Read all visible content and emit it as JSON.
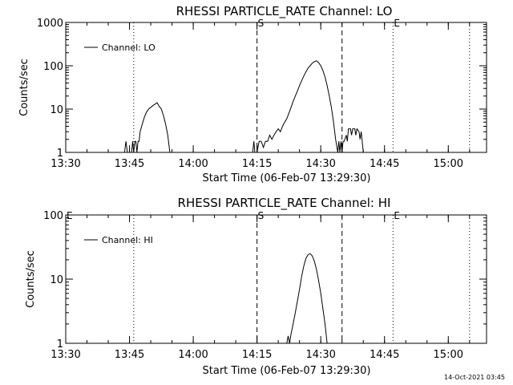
{
  "chart_data": [
    {
      "type": "line",
      "title": "RHESSI PARTICLE_RATE Channel: LO",
      "xlabel": "Start Time (06-Feb-07 13:29:30)",
      "ylabel": "Counts/sec",
      "yscale": "log",
      "ylim": [
        1,
        1000
      ],
      "yticks": [
        "1",
        "10",
        "100",
        "1000"
      ],
      "xticks": [
        "13:30",
        "13:45",
        "14:00",
        "14:15",
        "14:30",
        "14:45",
        "15:00"
      ],
      "legend": "top-left",
      "vlines": [
        {
          "time": "13:46",
          "style": "dotted"
        },
        {
          "time": "14:15",
          "style": "dashed",
          "label": "S"
        },
        {
          "time": "14:35",
          "style": "dashed"
        },
        {
          "time": "14:47",
          "style": "dotted",
          "label": "E"
        },
        {
          "time": "15:05",
          "style": "dotted"
        }
      ],
      "series": [
        {
          "name": "Channel: LO",
          "points": [
            [
              "13:43:50",
              1
            ],
            [
              "13:44:10",
              1.8
            ],
            [
              "13:44:30",
              1
            ],
            [
              "13:45:30",
              1
            ],
            [
              "13:45:45",
              1.8
            ],
            [
              "13:46:00",
              1
            ],
            [
              "13:46:15",
              1.8
            ],
            [
              "13:46:30",
              1.8
            ],
            [
              "13:46:45",
              1
            ],
            [
              "13:47:00",
              1.8
            ],
            [
              "13:47:15",
              1.8
            ],
            [
              "13:47:30",
              3
            ],
            [
              "13:48:00",
              4.5
            ],
            [
              "13:48:30",
              6.5
            ],
            [
              "13:49:00",
              8.5
            ],
            [
              "13:49:30",
              10
            ],
            [
              "13:50:00",
              11
            ],
            [
              "13:50:30",
              12
            ],
            [
              "13:51:00",
              13
            ],
            [
              "13:51:30",
              14
            ],
            [
              "13:52:00",
              11.5
            ],
            [
              "13:52:30",
              10
            ],
            [
              "13:53:00",
              7
            ],
            [
              "13:53:30",
              4.5
            ],
            [
              "13:54:00",
              2.5
            ],
            [
              "13:54:30",
              1
            ],
            [
              "14:14:00",
              1
            ],
            [
              "14:14:15",
              1.8
            ],
            [
              "14:14:30",
              1
            ],
            [
              "14:15:00",
              1
            ],
            [
              "14:15:30",
              1.8
            ],
            [
              "14:16:00",
              1.8
            ],
            [
              "14:16:30",
              1.3
            ],
            [
              "14:17:00",
              1.8
            ],
            [
              "14:17:30",
              1.8
            ],
            [
              "14:18:00",
              2.5
            ],
            [
              "14:18:30",
              2
            ],
            [
              "14:19:00",
              2.5
            ],
            [
              "14:19:30",
              3
            ],
            [
              "14:20:00",
              3.5
            ],
            [
              "14:20:30",
              3
            ],
            [
              "14:21:00",
              4
            ],
            [
              "14:21:30",
              5
            ],
            [
              "14:22:00",
              6
            ],
            [
              "14:22:30",
              8
            ],
            [
              "14:23:00",
              11
            ],
            [
              "14:23:30",
              15
            ],
            [
              "14:24:00",
              20
            ],
            [
              "14:24:30",
              26
            ],
            [
              "14:25:00",
              35
            ],
            [
              "14:25:30",
              45
            ],
            [
              "14:26:00",
              58
            ],
            [
              "14:26:30",
              72
            ],
            [
              "14:27:00",
              88
            ],
            [
              "14:27:30",
              100
            ],
            [
              "14:28:00",
              115
            ],
            [
              "14:28:30",
              125
            ],
            [
              "14:29:00",
              130
            ],
            [
              "14:29:30",
              118
            ],
            [
              "14:30:00",
              100
            ],
            [
              "14:30:30",
              78
            ],
            [
              "14:31:00",
              55
            ],
            [
              "14:31:30",
              35
            ],
            [
              "14:32:00",
              20
            ],
            [
              "14:32:30",
              11
            ],
            [
              "14:33:00",
              5
            ],
            [
              "14:33:30",
              2
            ],
            [
              "14:34:00",
              1
            ],
            [
              "14:34:15",
              1.8
            ],
            [
              "14:34:30",
              1
            ],
            [
              "14:34:45",
              1.8
            ],
            [
              "14:35:00",
              1
            ],
            [
              "14:35:15",
              1.8
            ],
            [
              "14:35:30",
              1.8
            ],
            [
              "14:36:00",
              2.5
            ],
            [
              "14:36:15",
              1.8
            ],
            [
              "14:36:30",
              3.5
            ],
            [
              "14:37:00",
              3.5
            ],
            [
              "14:37:15",
              2.5
            ],
            [
              "14:37:30",
              3.5
            ],
            [
              "14:38:00",
              3.5
            ],
            [
              "14:38:15",
              2.5
            ],
            [
              "14:38:30",
              3.5
            ],
            [
              "14:39:00",
              3
            ],
            [
              "14:39:15",
              2
            ],
            [
              "14:39:30",
              3
            ],
            [
              "14:39:45",
              1.8
            ],
            [
              "14:40:00",
              1
            ]
          ]
        }
      ]
    },
    {
      "type": "line",
      "title": "RHESSI PARTICLE_RATE Channel: HI",
      "xlabel": "Start Time (06-Feb-07 13:29:30)",
      "ylabel": "Counts/sec",
      "yscale": "log",
      "ylim": [
        1,
        100
      ],
      "yticks": [
        "1",
        "10",
        "100"
      ],
      "xticks": [
        "13:30",
        "13:45",
        "14:00",
        "14:15",
        "14:30",
        "14:45",
        "15:00"
      ],
      "legend": "top-left",
      "vlines": [
        {
          "time": "13:30",
          "style": "none",
          "label": "E"
        },
        {
          "time": "13:46",
          "style": "dotted"
        },
        {
          "time": "14:15",
          "style": "dashed",
          "label": "S"
        },
        {
          "time": "14:35",
          "style": "dashed"
        },
        {
          "time": "14:47",
          "style": "dotted",
          "label": "E"
        },
        {
          "time": "15:05",
          "style": "dotted"
        }
      ],
      "series": [
        {
          "name": "Channel: HI",
          "points": [
            [
              "14:22:00",
              1
            ],
            [
              "14:22:20",
              1.3
            ],
            [
              "14:22:40",
              1
            ],
            [
              "14:23:00",
              1.4
            ],
            [
              "14:23:30",
              2
            ],
            [
              "14:24:00",
              3
            ],
            [
              "14:24:30",
              4.5
            ],
            [
              "14:25:00",
              7
            ],
            [
              "14:25:30",
              11
            ],
            [
              "14:26:00",
              16
            ],
            [
              "14:26:30",
              21
            ],
            [
              "14:27:00",
              24
            ],
            [
              "14:27:30",
              25
            ],
            [
              "14:28:00",
              23
            ],
            [
              "14:28:30",
              19
            ],
            [
              "14:29:00",
              14
            ],
            [
              "14:29:30",
              9.5
            ],
            [
              "14:30:00",
              6
            ],
            [
              "14:30:30",
              3.5
            ],
            [
              "14:31:00",
              2
            ],
            [
              "14:31:30",
              1
            ]
          ]
        }
      ]
    }
  ],
  "footer": {
    "timestamp": "14-Oct-2021 03:45"
  }
}
